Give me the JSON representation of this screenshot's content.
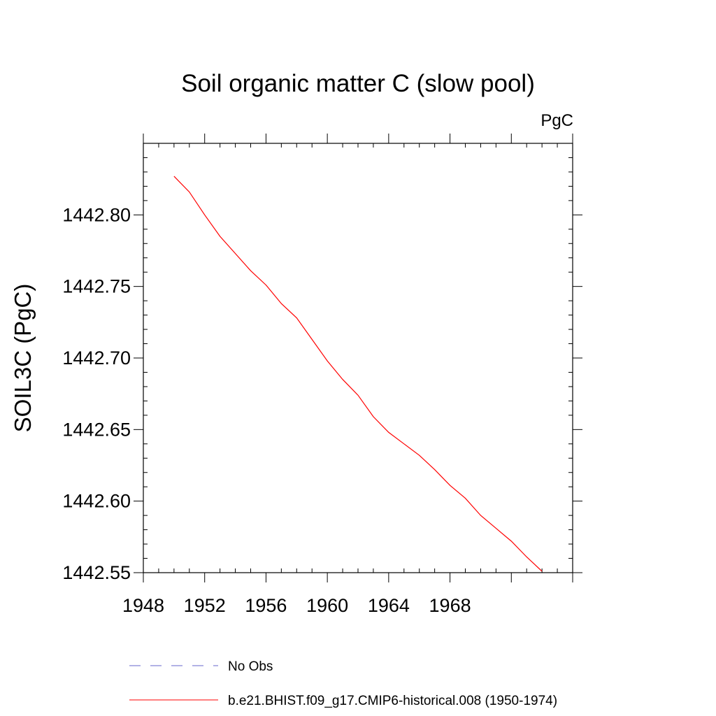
{
  "chart_data": {
    "type": "line",
    "title": "Soil organic matter C (slow pool)",
    "units_label": "PgC",
    "xlabel": "",
    "ylabel": "SOIL3C  (PgC)",
    "xlim": [
      1948,
      1976
    ],
    "ylim": [
      1442.55,
      1442.85
    ],
    "x_ticks": [
      1948,
      1952,
      1956,
      1960,
      1964,
      1968
    ],
    "y_ticks": [
      "1442.55",
      "1442.60",
      "1442.65",
      "1442.70",
      "1442.75",
      "1442.80"
    ],
    "grid": false,
    "series": [
      {
        "name": "b.e21.BHIST.f09_g17.CMIP6-historical.008 (1950-1974)",
        "color": "#ff0000",
        "style": "solid",
        "x": [
          1950,
          1951,
          1952,
          1953,
          1954,
          1955,
          1956,
          1957,
          1958,
          1959,
          1960,
          1961,
          1962,
          1963,
          1964,
          1965,
          1966,
          1967,
          1968,
          1969,
          1970,
          1971,
          1972,
          1973,
          1974
        ],
        "y": [
          1442.827,
          1442.816,
          1442.8,
          1442.785,
          1442.773,
          1442.761,
          1442.751,
          1442.738,
          1442.728,
          1442.713,
          1442.698,
          1442.685,
          1442.674,
          1442.659,
          1442.648,
          1442.64,
          1442.632,
          1442.622,
          1442.611,
          1442.602,
          1442.59,
          1442.581,
          1442.572,
          1442.561,
          1442.551
        ]
      }
    ],
    "legend": {
      "placement": "bottom",
      "entries": [
        {
          "label": "No Obs",
          "color": "#6666cc",
          "style": "dashed"
        },
        {
          "label": "b.e21.BHIST.f09_g17.CMIP6-historical.008 (1950-1974)",
          "color": "#ff0000",
          "style": "solid"
        }
      ]
    }
  }
}
